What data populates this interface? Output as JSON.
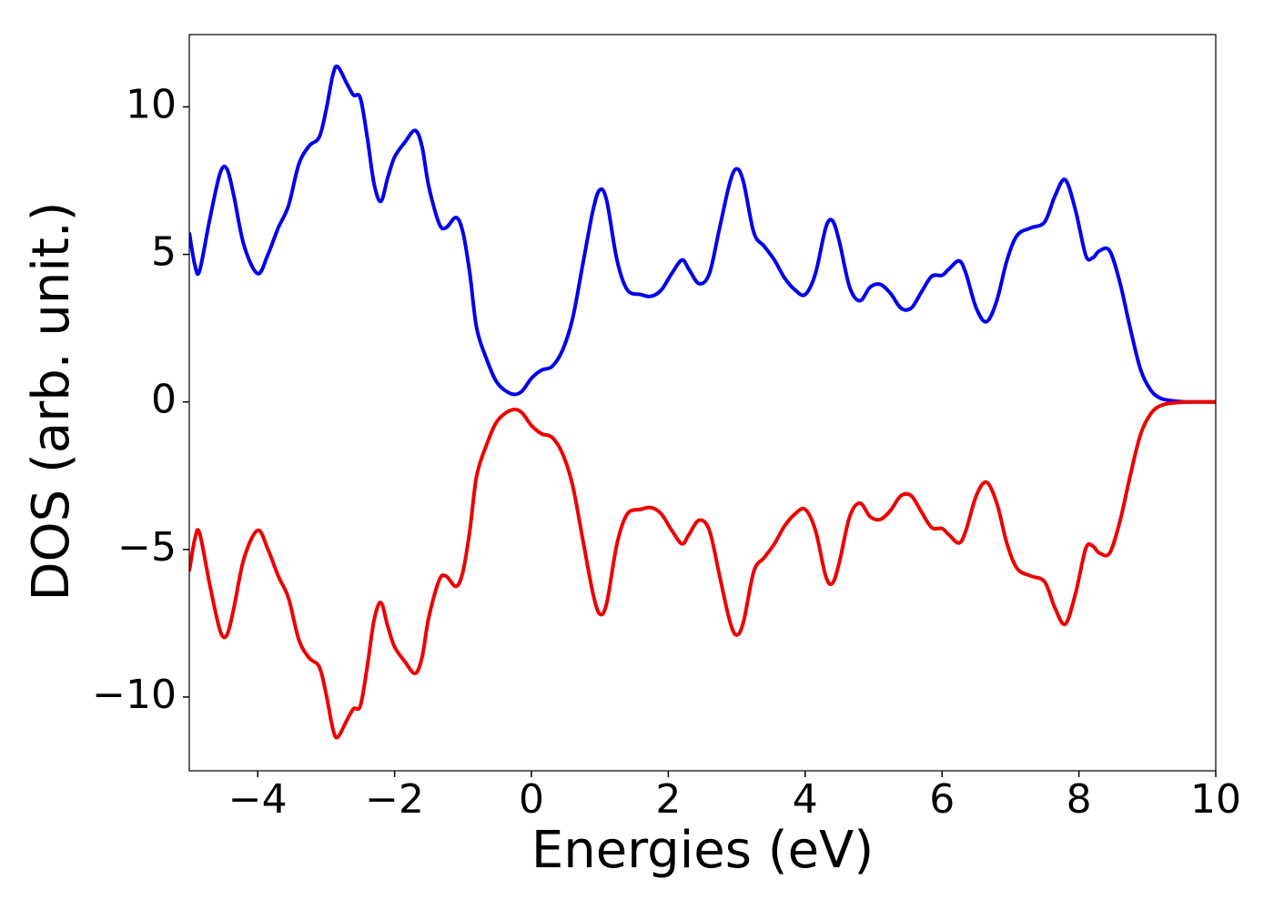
{
  "chart_data": {
    "type": "line",
    "xlabel": "Energies (eV)",
    "ylabel": "DOS (arb. unit.)",
    "x": [
      -5,
      -4.92,
      -4.85,
      -4.7,
      -4.55,
      -4.45,
      -4.35,
      -4.2,
      -4.0,
      -3.85,
      -3.7,
      -3.55,
      -3.4,
      -3.25,
      -3.1,
      -3.0,
      -2.9,
      -2.83,
      -2.7,
      -2.6,
      -2.5,
      -2.4,
      -2.3,
      -2.2,
      -2.1,
      -2.0,
      -1.85,
      -1.7,
      -1.6,
      -1.5,
      -1.35,
      -1.25,
      -1.1,
      -1.0,
      -0.9,
      -0.8,
      -0.65,
      -0.5,
      -0.3,
      -0.15,
      0,
      0.15,
      0.3,
      0.45,
      0.6,
      0.75,
      0.9,
      1.0,
      1.1,
      1.25,
      1.4,
      1.6,
      1.75,
      1.9,
      2.05,
      2.2,
      2.3,
      2.45,
      2.6,
      2.75,
      2.9,
      3.0,
      3.1,
      3.25,
      3.4,
      3.55,
      3.7,
      3.85,
      4.0,
      4.15,
      4.3,
      4.4,
      4.5,
      4.65,
      4.8,
      4.95,
      5.1,
      5.25,
      5.4,
      5.55,
      5.7,
      5.85,
      6.0,
      6.1,
      6.25,
      6.35,
      6.5,
      6.65,
      6.8,
      6.95,
      7.1,
      7.3,
      7.5,
      7.65,
      7.8,
      7.95,
      8.1,
      8.2,
      8.3,
      8.45,
      8.6,
      8.75,
      8.9,
      9.05,
      9.2,
      9.4,
      9.6,
      10
    ],
    "series": [
      {
        "color": "#0000ee",
        "values": [
          5.74,
          4.66,
          4.44,
          6.2,
          7.75,
          7.9,
          7.0,
          5.3,
          4.35,
          5.0,
          5.9,
          6.65,
          8.05,
          8.67,
          8.98,
          9.9,
          11.1,
          11.36,
          10.8,
          10.4,
          10.3,
          8.98,
          7.4,
          6.8,
          7.6,
          8.3,
          8.8,
          9.2,
          8.67,
          7.3,
          6.05,
          5.9,
          6.25,
          5.74,
          4.35,
          2.5,
          1.42,
          0.65,
          0.28,
          0.34,
          0.8,
          1.08,
          1.2,
          1.73,
          2.81,
          4.66,
          6.5,
          7.19,
          6.82,
          4.81,
          3.8,
          3.64,
          3.58,
          3.8,
          4.35,
          4.81,
          4.5,
          4.01,
          4.35,
          5.9,
          7.44,
          7.9,
          7.44,
          5.74,
          5.28,
          4.81,
          4.2,
          3.8,
          3.64,
          4.35,
          5.9,
          6.14,
          5.43,
          3.89,
          3.43,
          3.89,
          3.98,
          3.67,
          3.18,
          3.18,
          3.73,
          4.26,
          4.29,
          4.5,
          4.78,
          4.35,
          3.18,
          2.72,
          3.43,
          4.81,
          5.65,
          5.9,
          6.1,
          6.98,
          7.53,
          6.5,
          4.97,
          4.88,
          5.12,
          5.12,
          4.04,
          2.5,
          1.11,
          0.4,
          0.12,
          0.03,
          0,
          0
        ]
      },
      {
        "color": "#ee0000",
        "values": [
          -5.74,
          -4.66,
          -4.44,
          -6.2,
          -7.75,
          -7.9,
          -7.0,
          -5.3,
          -4.35,
          -5.0,
          -5.9,
          -6.65,
          -8.05,
          -8.67,
          -8.98,
          -9.9,
          -11.1,
          -11.36,
          -10.8,
          -10.4,
          -10.3,
          -8.98,
          -7.4,
          -6.8,
          -7.6,
          -8.3,
          -8.8,
          -9.2,
          -8.67,
          -7.3,
          -6.05,
          -5.9,
          -6.25,
          -5.74,
          -4.35,
          -2.5,
          -1.42,
          -0.65,
          -0.28,
          -0.34,
          -0.8,
          -1.08,
          -1.2,
          -1.73,
          -2.81,
          -4.66,
          -6.5,
          -7.19,
          -6.82,
          -4.81,
          -3.8,
          -3.64,
          -3.58,
          -3.8,
          -4.35,
          -4.81,
          -4.5,
          -4.01,
          -4.35,
          -5.9,
          -7.44,
          -7.9,
          -7.44,
          -5.74,
          -5.28,
          -4.81,
          -4.2,
          -3.8,
          -3.64,
          -4.35,
          -5.9,
          -6.14,
          -5.43,
          -3.89,
          -3.43,
          -3.89,
          -3.98,
          -3.67,
          -3.18,
          -3.18,
          -3.73,
          -4.26,
          -4.29,
          -4.5,
          -4.78,
          -4.35,
          -3.18,
          -2.72,
          -3.43,
          -4.81,
          -5.65,
          -5.9,
          -6.1,
          -6.98,
          -7.53,
          -6.5,
          -4.97,
          -4.88,
          -5.12,
          -5.12,
          -4.04,
          -2.5,
          -1.11,
          -0.4,
          -0.12,
          -0.03,
          0,
          0
        ]
      }
    ],
    "xlim": [
      -5,
      10
    ],
    "xticks": [
      {
        "value": -4,
        "label": "−4"
      },
      {
        "value": -2,
        "label": "−2"
      },
      0,
      2,
      4,
      6,
      8,
      10
    ],
    "ylim": [
      -12.5,
      12.45
    ],
    "yticks": [
      {
        "value": -10,
        "label": "−10"
      },
      {
        "value": -5,
        "label": "−5"
      },
      0,
      5,
      10
    ],
    "grid": false
  }
}
